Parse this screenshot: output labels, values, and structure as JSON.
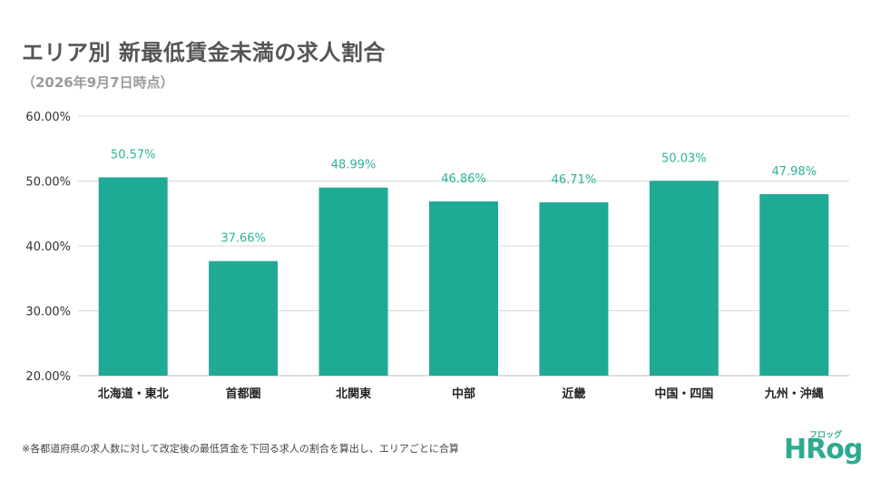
{
  "chart_data": {
    "type": "bar",
    "title": "エリア別 新最低賃金未満の求人割合",
    "subtitle": "（2026年9月7日時点）",
    "categories": [
      "北海道・東北",
      "首都圏",
      "北関東",
      "中部",
      "近畿",
      "中国・四国",
      "九州・沖縄"
    ],
    "values": [
      50.57,
      37.66,
      48.99,
      46.86,
      46.71,
      50.03,
      47.98
    ],
    "value_labels": [
      "50.57%",
      "37.66%",
      "48.99%",
      "46.86%",
      "46.71%",
      "50.03%",
      "47.98%"
    ],
    "ylim": [
      20,
      60
    ],
    "yticks": [
      20,
      30,
      40,
      50,
      60
    ],
    "ytick_labels": [
      "20.00%",
      "30.00%",
      "40.00%",
      "50.00%",
      "60.00%"
    ],
    "xlabel": "",
    "ylabel": "",
    "grid": true,
    "bar_color": "#1faa96",
    "label_color": "#2bb39a",
    "grid_color": "#d9d9d9"
  },
  "footnote": "※各都道府県の求人数に対して改定後の最低賃金を下回る求人の割合を算出し、エリアごとに合算",
  "logo": {
    "main": "HRog",
    "kana": "フロッグ"
  }
}
